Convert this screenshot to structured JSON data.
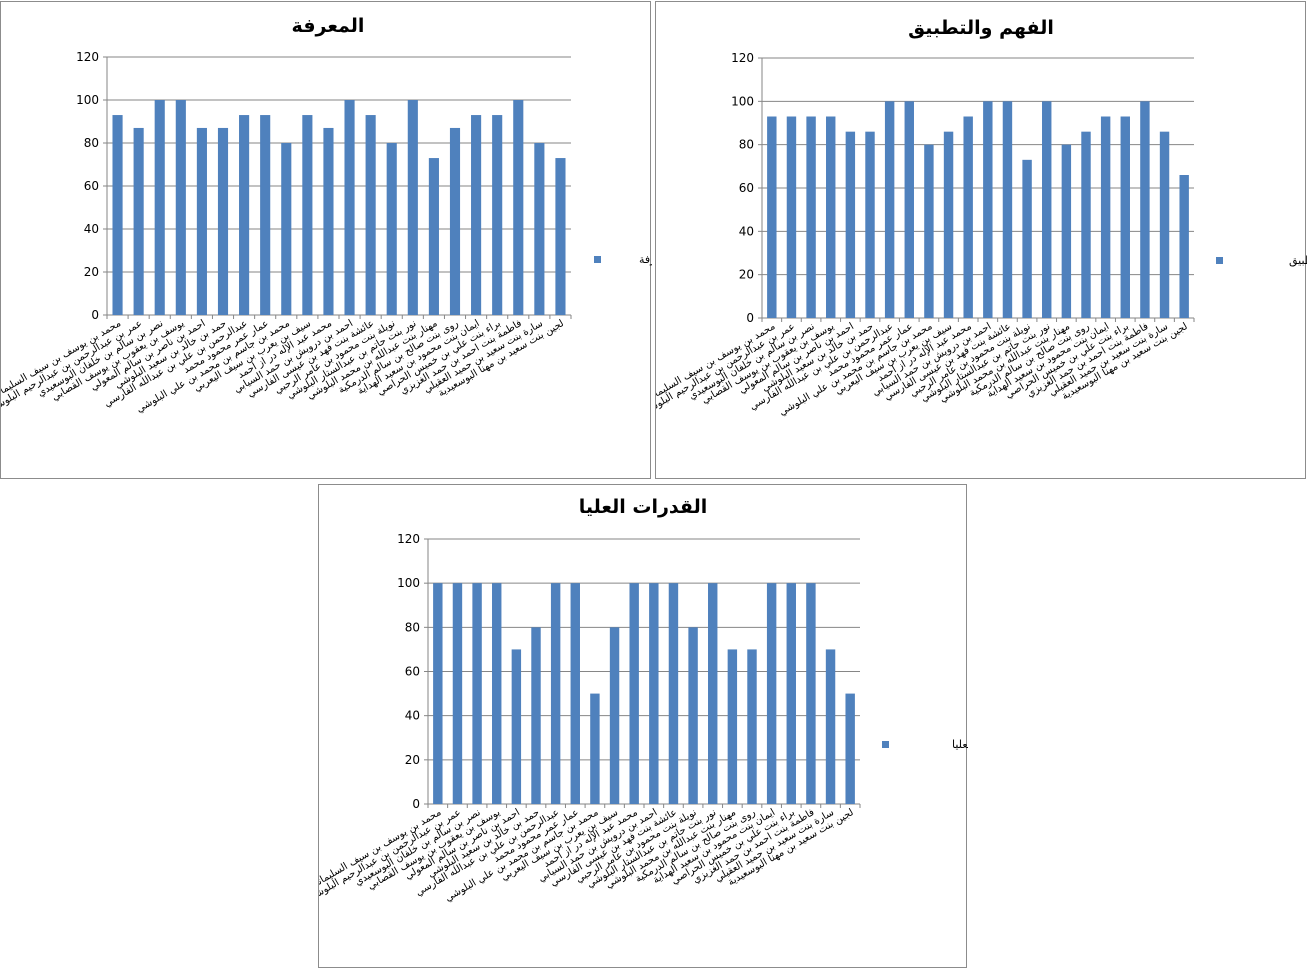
{
  "colors": {
    "bar": "#4f81bd",
    "grid": "#868686",
    "axis": "#868686"
  },
  "chart_data": [
    {
      "type": "bar",
      "title": "المعرفة",
      "ylim": [
        0,
        120
      ],
      "yticks": [
        0,
        20,
        40,
        60,
        80,
        100,
        120
      ],
      "grid": true,
      "legend": "right",
      "categories": [
        "محمد بن يوسف بن سيف السليماني",
        "عمر بن عبدالرحمن بن عبدالرحيم البلوشي",
        "نصر بن سالم بن خلفان البوسعيدي",
        "يوسف بن يعقوب بن يوسف القصابي",
        "احمد بن ناصر بن سالم المعولي",
        "حمد بن خالد بن سعيد البلوشي",
        "عبدالرحمن بن علي بن عبدالله الفارسي",
        "عمار عمر محمود محمد",
        "محمد بن جاسم بن محمد بن علي البلوشي",
        "سيف بن يعرب بن سيف اليعربي",
        "محمد عبد الإله در از احمد",
        "احمد بن درويش بن حمد السيابي",
        "عائشة بنت فهد بن عيسى الفارسي",
        "نويلة بنت محمود بن عامر الرحبي",
        "نور بنت حاتم بن عبدالستار البلوشي",
        "مهنار بنت عبدالله بن محمد البلوشي",
        "روى بنت صالح بن سالم الدرمكية",
        "ايمان بنت محمود بن سعيد الهداية",
        "براء بنت علي بن خميس الحراصي",
        "فاطمة بنت احمد بن حمد الغزيزي",
        "سارة بنت سعيد بن حميد العقيلي",
        "لجين بنت سعيد بن مهنا البوسعيدية"
      ],
      "series": [
        {
          "name": "المعرفة",
          "values": [
            93,
            87,
            100,
            100,
            87,
            87,
            93,
            93,
            80,
            93,
            87,
            100,
            93,
            80,
            100,
            73,
            87,
            93,
            93,
            100,
            80,
            73
          ]
        }
      ]
    },
    {
      "type": "bar",
      "title": "الفهم والتطبيق",
      "ylim": [
        0,
        120
      ],
      "yticks": [
        0,
        20,
        40,
        60,
        80,
        100,
        120
      ],
      "grid": true,
      "legend": "right",
      "categories": [
        "محمد بن يوسف بن سيف السليماني",
        "عمر بن عبدالرحمن بن عبدالرحيم البلوشي",
        "نصر بن سالم بن خلفان البوسعيدي",
        "يوسف بن يعقوب بن يوسف القصابي",
        "احمد بن ناصر بن سالم المعولي",
        "حمد بن خالد بن سعيد البلوشي",
        "عبدالرحمن بن علي بن عبدالله الفارسي",
        "عمار عمر محمود محمد",
        "محمد بن جاسم بن محمد بن علي البلوشي",
        "سيف بن يعرب بن سيف اليعربي",
        "محمد عبد الإله در از احمد",
        "احمد بن درويش بن حمد السيابي",
        "عائشة بنت فهد بن عيسى الفارسي",
        "نويلة بنت محمود بن عامر الرحبي",
        "نور بنت حاتم بن عبدالستار البلوشي",
        "مهنار بنت عبدالله بن محمد البلوشي",
        "روى بنت صالح بن سالم الدرمكية",
        "ايمان بنت محمود بن سعيد الهداية",
        "براء بنت علي بن خميس الحراصي",
        "فاطمة بنت احمد بن حمد الغزيزي",
        "سارة بنت سعيد بن حميد العقيلي",
        "لجين بنت سعيد بن مهنا البوسعيدية"
      ],
      "series": [
        {
          "name": "الفهم والتطبيق",
          "values": [
            93,
            93,
            93,
            93,
            86,
            86,
            100,
            100,
            80,
            86,
            93,
            100,
            100,
            73,
            100,
            80,
            86,
            93,
            93,
            100,
            86,
            66
          ]
        }
      ]
    },
    {
      "type": "bar",
      "title": "القدرات العليا",
      "ylim": [
        0,
        120
      ],
      "yticks": [
        0,
        20,
        40,
        60,
        80,
        100,
        120
      ],
      "grid": true,
      "legend": "right",
      "categories": [
        "محمد بن يوسف بن سيف السليماني",
        "عمر بن عبدالرحمن بن عبدالرحيم البلوشي",
        "نصر بن سالم بن خلفان البوسعيدي",
        "يوسف بن يعقوب بن يوسف القصابي",
        "احمد بن ناصر بن سالم المعولي",
        "حمد بن خالد بن سعيد البلوشي",
        "عبدالرحمن بن علي بن عبدالله الفارسي",
        "عمار عمر محمود محمد",
        "محمد بن جاسم بن محمد بن علي البلوشي",
        "سيف بن يعرب بن سيف اليعربي",
        "محمد عبد الإله در از احمد",
        "احمد بن درويش بن حمد السيابي",
        "عائشة بنت فهد بن عيسى الفارسي",
        "نويلة بنت محمود بن عامر الرحبي",
        "نور بنت حاتم بن عبدالستار البلوشي",
        "مهنار بنت عبدالله بن محمد البلوشي",
        "روى بنت صالح بن سالم الدرمكية",
        "ايمان بنت محمود بن سعيد الهداية",
        "براء بنت علي بن خميس الحراصي",
        "فاطمة بنت احمد بن حمد الغزيزي",
        "سارة بنت سعيد بن حميد العقيلي",
        "لجين بنت سعيد بن مهنا البوسعيدية"
      ],
      "series": [
        {
          "name": "القدرات العليا",
          "values": [
            100,
            100,
            100,
            100,
            70,
            80,
            100,
            100,
            50,
            80,
            100,
            100,
            100,
            80,
            100,
            70,
            70,
            100,
            100,
            100,
            70,
            50
          ]
        }
      ]
    }
  ]
}
